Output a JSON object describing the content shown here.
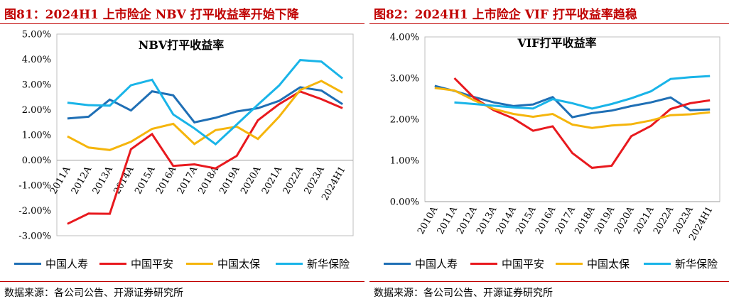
{
  "left": {
    "figure_title": "图81：2024H1 上市险企 NBV 打平收益率开始下降",
    "source": "数据来源：各公司公告、开源证券研究所"
  },
  "right": {
    "figure_title": "图82：2024H1 上市险企 VIF 打平收益率趋稳",
    "source": "数据来源：各公司公告、开源证券研究所"
  },
  "chart_data": [
    {
      "type": "line",
      "title": "NBV打平收益率",
      "xlabel": "",
      "ylabel": "",
      "ylim": [
        -0.03,
        0.05
      ],
      "yticks": [
        -0.03,
        -0.02,
        -0.01,
        0.0,
        0.01,
        0.02,
        0.03,
        0.04,
        0.05
      ],
      "ytick_labels": [
        "-3.00%",
        "-2.00%",
        "-1.00%",
        "0.00%",
        "1.00%",
        "2.00%",
        "3.00%",
        "4.00%",
        "5.00%"
      ],
      "categories": [
        "2011A",
        "2012A",
        "2013A",
        "2014A",
        "2015A",
        "2016A",
        "2017A",
        "2018A",
        "2019A",
        "2020A",
        "2021A",
        "2022A",
        "2023A",
        "2024H1"
      ],
      "grid": false,
      "legend_position": "bottom",
      "series": [
        {
          "name": "中国人寿",
          "color": "#1f6fb5",
          "values": [
            0.0165,
            0.0172,
            0.024,
            0.0197,
            0.0273,
            0.0257,
            0.015,
            0.0168,
            0.0193,
            0.0206,
            0.0235,
            0.0289,
            0.0276,
            0.0222
          ]
        },
        {
          "name": "中国平安",
          "color": "#e8191e",
          "values": [
            -0.0253,
            -0.0212,
            -0.0213,
            0.0043,
            0.0103,
            -0.0023,
            -0.0017,
            -0.0033,
            0.0017,
            0.0158,
            0.0222,
            0.0272,
            0.0242,
            0.0206
          ]
        },
        {
          "name": "中国太保",
          "color": "#f5b50c",
          "values": [
            0.0094,
            0.005,
            0.004,
            0.0073,
            0.0124,
            0.0144,
            0.0064,
            0.0119,
            0.0133,
            0.0084,
            0.0172,
            0.0278,
            0.0314,
            0.0268
          ]
        },
        {
          "name": "新华保险",
          "color": "#19b4e8",
          "values": [
            0.0228,
            0.0218,
            0.0216,
            0.0297,
            0.0319,
            0.0181,
            0.0126,
            0.0063,
            0.0141,
            0.022,
            0.0296,
            0.0397,
            0.0391,
            0.0324
          ]
        }
      ]
    },
    {
      "type": "line",
      "title": "VIF打平收益率",
      "xlabel": "",
      "ylabel": "",
      "ylim": [
        0.0,
        0.04
      ],
      "yticks": [
        0.0,
        0.01,
        0.02,
        0.03,
        0.04
      ],
      "ytick_labels": [
        "0.00%",
        "1.00%",
        "2.00%",
        "3.00%",
        "4.00%"
      ],
      "categories": [
        "2010A",
        "2011A",
        "2012A",
        "2013A",
        "2014A",
        "2015A",
        "2016A",
        "2017A",
        "2018A",
        "2019A",
        "2020A",
        "2021A",
        "2022A",
        "2023A",
        "2024H1"
      ],
      "grid": false,
      "legend_position": "bottom",
      "series": [
        {
          "name": "中国人寿",
          "color": "#1f6fb5",
          "values": [
            0.0281,
            0.0269,
            0.0254,
            0.0241,
            0.0232,
            0.0236,
            0.0254,
            0.0205,
            0.0215,
            0.0221,
            0.0232,
            0.0241,
            0.0253,
            0.0222,
            0.0224
          ]
        },
        {
          "name": "中国平安",
          "color": "#e8191e",
          "values": [
            null,
            0.03,
            0.0252,
            0.0222,
            0.0202,
            0.0172,
            0.0183,
            0.0118,
            0.0082,
            0.0087,
            0.0159,
            0.0184,
            0.0225,
            0.0239,
            0.0246
          ]
        },
        {
          "name": "中国太保",
          "color": "#f5b50c",
          "values": [
            0.0276,
            0.027,
            0.0246,
            0.0225,
            0.0213,
            0.0206,
            0.0213,
            0.0187,
            0.0179,
            0.0185,
            0.0188,
            0.0197,
            0.021,
            0.0212,
            0.0217
          ]
        },
        {
          "name": "新华保险",
          "color": "#19b4e8",
          "values": [
            null,
            0.0241,
            0.0237,
            0.0233,
            0.0229,
            0.0226,
            0.0249,
            0.0239,
            0.0226,
            0.0237,
            0.0251,
            0.0268,
            0.0298,
            0.0302,
            0.0305
          ]
        }
      ]
    }
  ]
}
